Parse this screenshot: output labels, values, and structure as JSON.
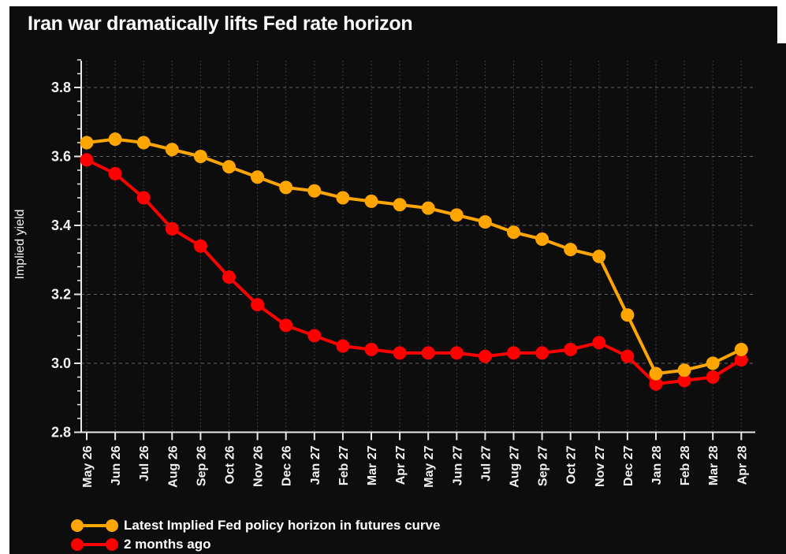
{
  "chart_data": {
    "type": "line",
    "title": "Iran war dramatically lifts Fed rate horizon",
    "ylabel": "Implied yield",
    "xlabel": "",
    "ylim": [
      2.8,
      3.88
    ],
    "yticks": [
      2.8,
      3.0,
      3.2,
      3.4,
      3.6,
      3.8
    ],
    "ytick_minor_step": 0.04,
    "grid": true,
    "legend_position": "bottom-left",
    "categories": [
      "May 26",
      "Jun 26",
      "Jul 26",
      "Aug 26",
      "Sep 26",
      "Oct 26",
      "Nov 26",
      "Dec 26",
      "Jan 27",
      "Feb 27",
      "Mar 27",
      "Apr 27",
      "May 27",
      "Jun 27",
      "Jul 27",
      "Aug 27",
      "Sep 27",
      "Oct 27",
      "Nov 27",
      "Dec 27",
      "Jan 28",
      "Feb 28",
      "Mar 28",
      "Apr 28"
    ],
    "series": [
      {
        "name": "Latest Implied Fed policy horizon in futures curve",
        "color": "#FFA500",
        "values": [
          3.64,
          3.65,
          3.64,
          3.62,
          3.6,
          3.57,
          3.54,
          3.51,
          3.5,
          3.48,
          3.47,
          3.46,
          3.45,
          3.43,
          3.41,
          3.38,
          3.36,
          3.33,
          3.31,
          3.14,
          2.97,
          2.98,
          3.0,
          3.04
        ]
      },
      {
        "name": "2 months ago",
        "color": "#FF0000",
        "values": [
          3.59,
          3.55,
          3.48,
          3.39,
          3.34,
          3.25,
          3.17,
          3.11,
          3.08,
          3.05,
          3.04,
          3.03,
          3.03,
          3.03,
          3.02,
          3.03,
          3.03,
          3.04,
          3.06,
          3.02,
          2.94,
          2.95,
          2.96,
          3.01
        ]
      }
    ],
    "colors": {
      "background": "#0D0D0D",
      "axis": "#E8E8E8",
      "grid_major": "#8C8C8C",
      "grid_minor": "#4A4A4A",
      "text": "#FFFFFF"
    }
  }
}
